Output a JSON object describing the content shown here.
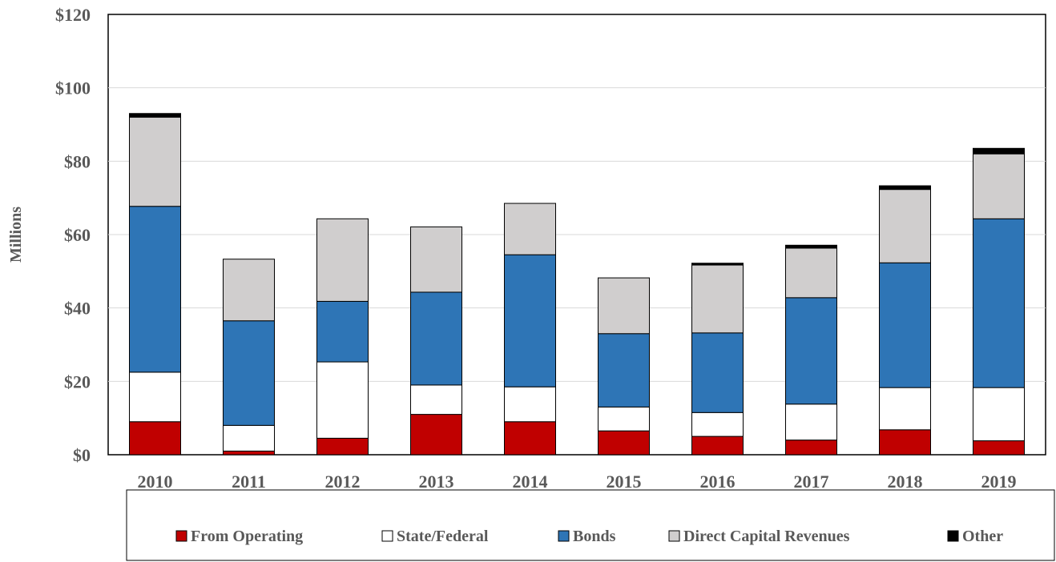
{
  "chart_data": {
    "type": "bar",
    "stacked": true,
    "title": "",
    "xlabel": "",
    "ylabel": "Millions",
    "ylim": [
      0,
      120
    ],
    "yticks": [
      "$0",
      "$20",
      "$40",
      "$60",
      "$80",
      "$100",
      "$120"
    ],
    "categories": [
      "2010",
      "2011",
      "2012",
      "2013",
      "2014",
      "2015",
      "2016",
      "2017",
      "2018",
      "2019"
    ],
    "grid": true,
    "legend_position": "bottom",
    "series": [
      {
        "name": "From Operating",
        "color": "#c00000",
        "values": [
          9.0,
          1.0,
          4.5,
          11.0,
          9.0,
          6.5,
          5.0,
          4.0,
          6.8,
          3.8
        ]
      },
      {
        "name": "State/Federal",
        "color": "#ffffff",
        "values": [
          13.5,
          7.0,
          20.8,
          8.0,
          9.5,
          6.5,
          6.5,
          9.8,
          11.5,
          14.5
        ]
      },
      {
        "name": "Bonds",
        "color": "#2e75b6",
        "values": [
          45.2,
          28.5,
          16.5,
          25.3,
          36.0,
          20.0,
          21.7,
          29.0,
          34.0,
          46.0
        ]
      },
      {
        "name": "Direct Capital Revenues",
        "color": "#d0cece",
        "values": [
          24.3,
          16.8,
          22.5,
          17.8,
          14.0,
          15.2,
          18.5,
          13.5,
          20.0,
          17.7
        ]
      },
      {
        "name": "Other",
        "color": "#000000",
        "values": [
          1.0,
          0.0,
          0.0,
          0.0,
          0.0,
          0.0,
          0.5,
          0.8,
          1.0,
          1.5
        ]
      }
    ]
  }
}
